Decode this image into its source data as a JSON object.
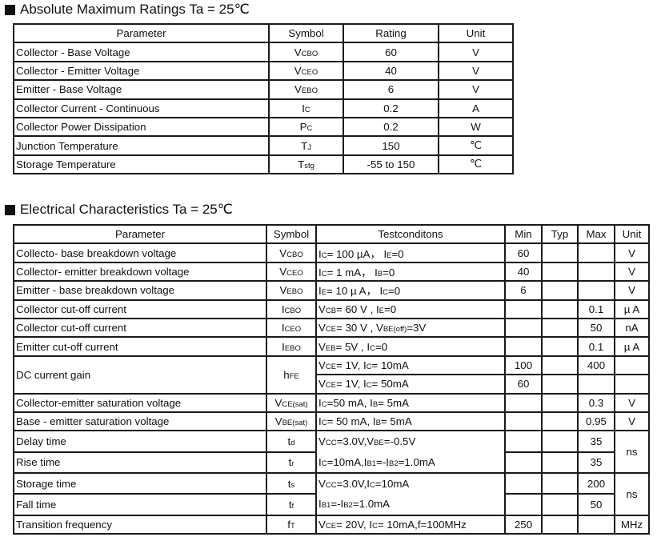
{
  "section1": {
    "title": "Absolute Maximum Ratings Ta = 25℃",
    "headers": [
      "Parameter",
      "Symbol",
      "Rating",
      "Unit"
    ],
    "rows": [
      {
        "parameter": "Collector - Base Voltage",
        "symbol": [
          "V",
          {
            "sub": "CBO"
          }
        ],
        "rating": "60",
        "unit": "V"
      },
      {
        "parameter": "Collector - Emitter Voltage",
        "symbol": [
          "V",
          {
            "sub": "CEO"
          }
        ],
        "rating": "40",
        "unit": "V"
      },
      {
        "parameter": "Emitter - Base Voltage",
        "symbol": [
          "V",
          {
            "sub": "EBO"
          }
        ],
        "rating": "6",
        "unit": "V"
      },
      {
        "parameter": "Collector Current  - Continuous",
        "symbol": [
          "I",
          {
            "sub": "C"
          }
        ],
        "rating": "0.2",
        "unit": "A"
      },
      {
        "parameter": "Collector Power Dissipation",
        "symbol": [
          "P",
          {
            "sub": "C"
          }
        ],
        "rating": "0.2",
        "unit": "W"
      },
      {
        "parameter": "Junction Temperature",
        "symbol": [
          "T",
          {
            "sub": "J"
          }
        ],
        "rating": "150",
        "unit": "℃"
      },
      {
        "parameter": "Storage Temperature",
        "symbol": [
          "T",
          {
            "sub": "stg"
          }
        ],
        "rating": "-55 to 150",
        "unit": "℃"
      }
    ]
  },
  "section2": {
    "title": "Electrical Characteristics Ta = 25℃",
    "headers": [
      "Parameter",
      "Symbol",
      "Testconditons",
      "Min",
      "Typ",
      "Max",
      "Unit"
    ],
    "rows": [
      {
        "parameter": "Collecto- base breakdown voltage",
        "symbol": [
          "V",
          {
            "sub": "CBO"
          }
        ],
        "conditions": [
          "I",
          {
            "sub": "C"
          },
          "= 100 µA，  I",
          {
            "sub": "E"
          },
          "=0"
        ],
        "min": "60",
        "typ": "",
        "max": "",
        "unit": "V"
      },
      {
        "parameter": "Collector- emitter breakdown voltage",
        "symbol": [
          "V",
          {
            "sub": "CEO"
          }
        ],
        "conditions": [
          "I",
          {
            "sub": "C"
          },
          "= 1 mA，  I",
          {
            "sub": "B"
          },
          "=0"
        ],
        "min": "40",
        "typ": "",
        "max": "",
        "unit": "V"
      },
      {
        "parameter": "Emitter - base breakdown voltage",
        "symbol": [
          "V",
          {
            "sub": "EBO"
          }
        ],
        "conditions": [
          "I",
          {
            "sub": "E"
          },
          "= 10 µ A，  I",
          {
            "sub": "C"
          },
          "=0"
        ],
        "min": "6",
        "typ": "",
        "max": "",
        "unit": "V"
      },
      {
        "parameter": "Collector cut-off current",
        "symbol": [
          "I",
          {
            "sub": "CBO"
          }
        ],
        "conditions": [
          "V",
          {
            "sub": "CB"
          },
          "= 60 V , I",
          {
            "sub": "E"
          },
          "=0"
        ],
        "min": "",
        "typ": "",
        "max": "0.1",
        "unit": "µ A"
      },
      {
        "parameter": "Collector cut-off current",
        "symbol": [
          "I",
          {
            "sub": "CEO"
          }
        ],
        "conditions": [
          "V",
          {
            "sub": "CE"
          },
          "= 30 V , V",
          {
            "sub": "BE(off)"
          },
          "=3V"
        ],
        "min": "",
        "typ": "",
        "max": "50",
        "unit": "nA"
      },
      {
        "parameter": "Emitter cut-off current",
        "symbol": [
          "I",
          {
            "sub": "EBO"
          }
        ],
        "conditions": [
          "V",
          {
            "sub": "EB"
          },
          "= 5V , I",
          {
            "sub": "C"
          },
          "=0"
        ],
        "min": "",
        "typ": "",
        "max": "0.1",
        "unit": "µ A"
      },
      {
        "parameter": "DC current gain",
        "parameter_rowspan": 2,
        "symbol": [
          "h",
          {
            "sub": "FE"
          }
        ],
        "symbol_rowspan": 2,
        "conditions": [
          "V",
          {
            "sub": "CE"
          },
          "= 1V, I",
          {
            "sub": "C"
          },
          "= 10mA"
        ],
        "min": "100",
        "typ": "",
        "max": "400",
        "unit": ""
      },
      {
        "conditions": [
          "V",
          {
            "sub": "CE"
          },
          "= 1V, I",
          {
            "sub": "C"
          },
          "= 50mA"
        ],
        "min": "60",
        "typ": "",
        "max": "",
        "unit": ""
      },
      {
        "parameter": "Collector-emitter saturation voltage",
        "symbol": [
          "V",
          {
            "sub": "CE(sat)"
          }
        ],
        "conditions": [
          "I",
          {
            "sub": "C"
          },
          "=50 mA, I",
          {
            "sub": "B"
          },
          "= 5mA"
        ],
        "min": "",
        "typ": "",
        "max": "0.3",
        "unit": "V"
      },
      {
        "parameter": "Base - emitter saturation voltage",
        "symbol": [
          "V",
          {
            "sub": "BE(sat)"
          }
        ],
        "conditions": [
          "I",
          {
            "sub": "C"
          },
          "= 50 mA, I",
          {
            "sub": "B"
          },
          "= 5mA"
        ],
        "min": "",
        "typ": "",
        "max": "0.95",
        "unit": "V"
      },
      {
        "parameter": "Delay time",
        "symbol": [
          "t",
          {
            "sub": "d"
          }
        ],
        "conditions_lines": [
          [
            "V",
            {
              "sub": "CC"
            },
            "=3.0V,V",
            {
              "sub": "BE"
            },
            "=-0.5V"
          ],
          [
            "I",
            {
              "sub": "C"
            },
            "=10mA,I",
            {
              "sub": "B1"
            },
            "=-I",
            {
              "sub": "B2"
            },
            "=1.0mA"
          ]
        ],
        "min": "",
        "typ": "",
        "max": "35",
        "unit": "ns",
        "unit_rowspan": 2
      },
      {
        "parameter": "Rise time",
        "symbol": [
          "t",
          {
            "sub": "r"
          }
        ],
        "min": "",
        "typ": "",
        "max": "35"
      },
      {
        "parameter": "Storage time",
        "symbol": [
          "t",
          {
            "sub": "s"
          }
        ],
        "conditions_lines": [
          [
            "V",
            {
              "sub": "CC"
            },
            "=3.0V,I",
            {
              "sub": "C"
            },
            "=10mA"
          ],
          [
            "I",
            {
              "sub": "B1"
            },
            "=-I",
            {
              "sub": "B2"
            },
            "=1.0mA"
          ]
        ],
        "min": "",
        "typ": "",
        "max": "200",
        "unit": "ns",
        "unit_rowspan": 2
      },
      {
        "parameter": "Fall time",
        "symbol": [
          "t",
          {
            "sub": "f"
          }
        ],
        "min": "",
        "typ": "",
        "max": "50"
      },
      {
        "parameter": "Transition frequency",
        "symbol": [
          "f",
          {
            "sub": "T"
          }
        ],
        "conditions": [
          "V",
          {
            "sub": "CE"
          },
          "= 20V, I",
          {
            "sub": "C"
          },
          "= 10mA,f=100MHz"
        ],
        "min": "250",
        "typ": "",
        "max": "",
        "unit": "MHz"
      }
    ]
  }
}
